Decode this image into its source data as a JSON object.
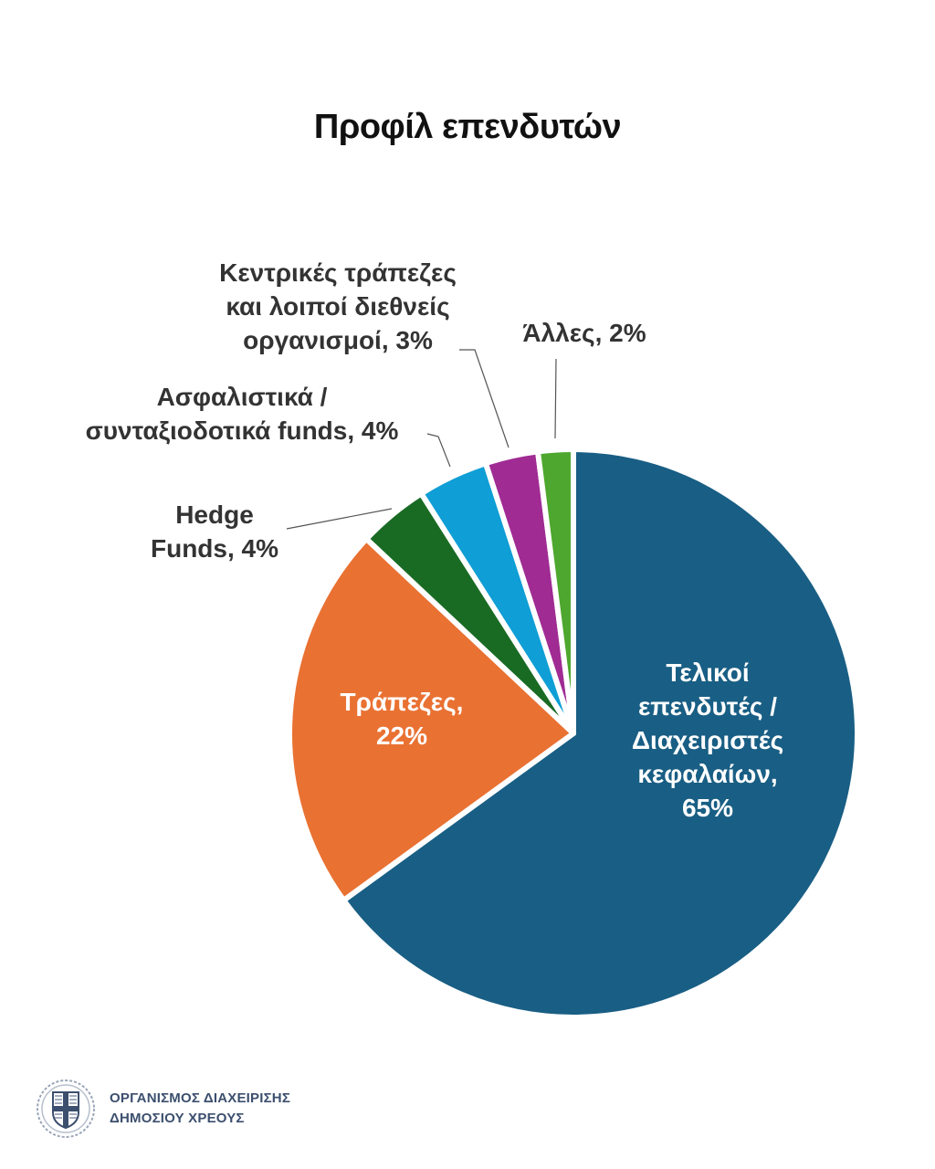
{
  "title": "Προφίλ επενδυτών",
  "chart_data": {
    "type": "pie",
    "title": "Προφίλ επενδυτών",
    "categories": [
      "Τελικοί επενδυτές / Διαχειριστές κεφαλαίων",
      "Τράπεζες",
      "Hedge Funds",
      "Ασφαλιστικά / συνταξιοδοτικά funds",
      "Κεντρικές τράπεζες και λοιποί διεθνείς οργανισμοί",
      "Άλλες"
    ],
    "values": [
      65,
      22,
      4,
      4,
      3,
      2
    ],
    "colors": [
      "#195e84",
      "#e97132",
      "#196b24",
      "#0f9ed5",
      "#a02b93",
      "#4ea72e"
    ],
    "unit": "%",
    "start_angle": "12 o'clock",
    "direction": "clockwise",
    "legend": "none (data labels)"
  },
  "labels": {
    "final_investors": [
      "Τελικοί",
      "επενδυτές /",
      "Διαχειριστές",
      "κεφαλαίων,",
      "65%"
    ],
    "banks": [
      "Τράπεζες,",
      "22%"
    ],
    "hedge": [
      "Hedge",
      "Funds, 4%"
    ],
    "insurance": [
      "Ασφαλιστικά /",
      "συνταξιοδοτικά funds, 4%"
    ],
    "central_banks": [
      "Κεντρικές τράπεζες",
      "και λοιποί διεθνείς",
      "οργανισμοί, 3%"
    ],
    "other": [
      "Άλλες, 2%"
    ]
  },
  "footer": {
    "org_line1": "ΟΡΓΑΝΙΣΜΟΣ ΔΙΑΧΕΙΡΙΣΗΣ",
    "org_line2": "ΔΗΜΟΣΙΟΥ ΧΡΕΟΥΣ",
    "logo_icon": "greek-coat-of-arms-icon"
  }
}
